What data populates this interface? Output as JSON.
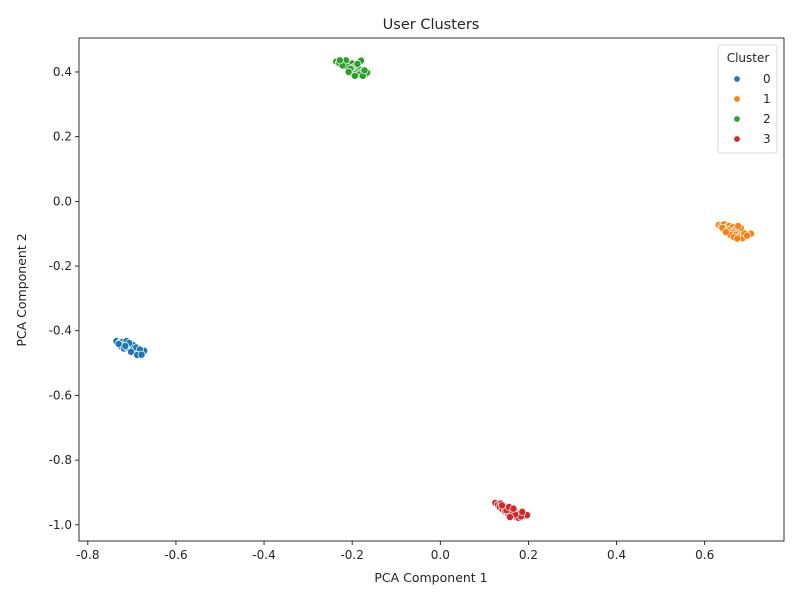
{
  "chart_data": {
    "type": "scatter",
    "title": "User Clusters",
    "xlabel": "PCA Component 1",
    "ylabel": "PCA Component 2",
    "xlim": [
      -0.82,
      0.78
    ],
    "ylim": [
      -1.05,
      0.505
    ],
    "xticks": [
      "-0.8",
      "-0.6",
      "-0.4",
      "-0.2",
      "0.0",
      "0.2",
      "0.4",
      "0.6"
    ],
    "yticks": [
      "-1.0",
      "-0.8",
      "-0.6",
      "-0.4",
      "-0.2",
      "0.0",
      "0.2",
      "0.4"
    ],
    "grid": false,
    "legend": {
      "title": "Cluster",
      "placement": "top-right",
      "entries": [
        "0",
        "1",
        "2",
        "3"
      ]
    },
    "series": [
      {
        "name": "0",
        "color": "#1f77b4",
        "points": [
          [
            -0.735,
            -0.432
          ],
          [
            -0.728,
            -0.437
          ],
          [
            -0.722,
            -0.435
          ],
          [
            -0.716,
            -0.44
          ],
          [
            -0.712,
            -0.432
          ],
          [
            -0.708,
            -0.444
          ],
          [
            -0.704,
            -0.448
          ],
          [
            -0.7,
            -0.452
          ],
          [
            -0.696,
            -0.455
          ],
          [
            -0.692,
            -0.459
          ],
          [
            -0.688,
            -0.462
          ],
          [
            -0.684,
            -0.466
          ],
          [
            -0.68,
            -0.469
          ],
          [
            -0.676,
            -0.466
          ],
          [
            -0.672,
            -0.462
          ],
          [
            -0.725,
            -0.448
          ],
          [
            -0.718,
            -0.455
          ],
          [
            -0.71,
            -0.452
          ],
          [
            -0.7,
            -0.46
          ],
          [
            -0.694,
            -0.468
          ],
          [
            -0.686,
            -0.471
          ],
          [
            -0.698,
            -0.444
          ],
          [
            -0.706,
            -0.438
          ],
          [
            -0.69,
            -0.452
          ],
          [
            -0.682,
            -0.458
          ],
          [
            -0.73,
            -0.441
          ],
          [
            -0.715,
            -0.447
          ],
          [
            -0.702,
            -0.465
          ],
          [
            -0.688,
            -0.475
          ],
          [
            -0.678,
            -0.474
          ]
        ]
      },
      {
        "name": "1",
        "color": "#ff7f0e",
        "points": [
          [
            0.632,
            -0.073
          ],
          [
            0.638,
            -0.077
          ],
          [
            0.644,
            -0.071
          ],
          [
            0.65,
            -0.08
          ],
          [
            0.656,
            -0.076
          ],
          [
            0.66,
            -0.085
          ],
          [
            0.664,
            -0.08
          ],
          [
            0.668,
            -0.09
          ],
          [
            0.672,
            -0.086
          ],
          [
            0.676,
            -0.095
          ],
          [
            0.68,
            -0.092
          ],
          [
            0.684,
            -0.101
          ],
          [
            0.688,
            -0.105
          ],
          [
            0.692,
            -0.11
          ],
          [
            0.705,
            -0.1
          ],
          [
            0.646,
            -0.086
          ],
          [
            0.654,
            -0.09
          ],
          [
            0.662,
            -0.097
          ],
          [
            0.67,
            -0.103
          ],
          [
            0.678,
            -0.11
          ],
          [
            0.686,
            -0.114
          ],
          [
            0.658,
            -0.103
          ],
          [
            0.666,
            -0.11
          ],
          [
            0.674,
            -0.115
          ],
          [
            0.64,
            -0.082
          ],
          [
            0.648,
            -0.095
          ],
          [
            0.69,
            -0.099
          ],
          [
            0.696,
            -0.106
          ],
          [
            0.682,
            -0.082
          ],
          [
            0.676,
            -0.076
          ]
        ]
      },
      {
        "name": "2",
        "color": "#2ca02c",
        "points": [
          [
            -0.236,
            0.432
          ],
          [
            -0.23,
            0.428
          ],
          [
            -0.224,
            0.432
          ],
          [
            -0.218,
            0.425
          ],
          [
            -0.212,
            0.43
          ],
          [
            -0.206,
            0.422
          ],
          [
            -0.2,
            0.426
          ],
          [
            -0.195,
            0.416
          ],
          [
            -0.19,
            0.42
          ],
          [
            -0.186,
            0.41
          ],
          [
            -0.182,
            0.406
          ],
          [
            -0.178,
            0.4
          ],
          [
            -0.174,
            0.396
          ],
          [
            -0.17,
            0.392
          ],
          [
            -0.166,
            0.398
          ],
          [
            -0.18,
            0.435
          ],
          [
            -0.21,
            0.415
          ],
          [
            -0.2,
            0.405
          ],
          [
            -0.192,
            0.398
          ],
          [
            -0.184,
            0.392
          ],
          [
            -0.176,
            0.388
          ],
          [
            -0.198,
            0.395
          ],
          [
            -0.204,
            0.41
          ],
          [
            -0.214,
            0.436
          ],
          [
            -0.222,
            0.42
          ],
          [
            -0.188,
            0.425
          ],
          [
            -0.172,
            0.405
          ],
          [
            -0.194,
            0.388
          ],
          [
            -0.228,
            0.436
          ],
          [
            -0.208,
            0.4
          ]
        ]
      },
      {
        "name": "3",
        "color": "#d62728",
        "points": [
          [
            0.125,
            -0.932
          ],
          [
            0.131,
            -0.937
          ],
          [
            0.137,
            -0.934
          ],
          [
            0.143,
            -0.941
          ],
          [
            0.149,
            -0.945
          ],
          [
            0.155,
            -0.95
          ],
          [
            0.161,
            -0.954
          ],
          [
            0.167,
            -0.958
          ],
          [
            0.173,
            -0.962
          ],
          [
            0.179,
            -0.965
          ],
          [
            0.185,
            -0.969
          ],
          [
            0.191,
            -0.972
          ],
          [
            0.197,
            -0.97
          ],
          [
            0.135,
            -0.945
          ],
          [
            0.141,
            -0.952
          ],
          [
            0.147,
            -0.958
          ],
          [
            0.153,
            -0.963
          ],
          [
            0.159,
            -0.967
          ],
          [
            0.165,
            -0.972
          ],
          [
            0.171,
            -0.975
          ],
          [
            0.177,
            -0.978
          ],
          [
            0.183,
            -0.974
          ],
          [
            0.16,
            -0.962
          ],
          [
            0.15,
            -0.955
          ],
          [
            0.17,
            -0.968
          ],
          [
            0.14,
            -0.94
          ],
          [
            0.156,
            -0.945
          ],
          [
            0.166,
            -0.95
          ],
          [
            0.186,
            -0.96
          ],
          [
            0.158,
            -0.976
          ]
        ]
      }
    ]
  }
}
